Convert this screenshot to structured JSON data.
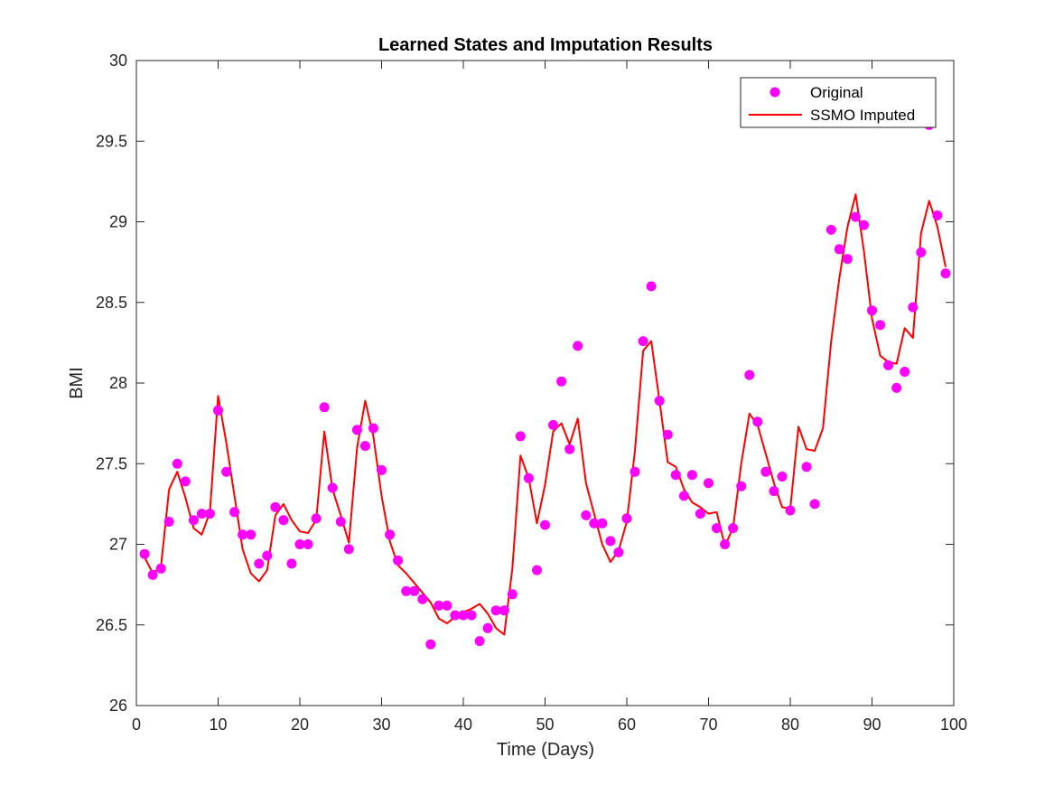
{
  "chart_data": {
    "type": "line",
    "title": "Learned States and Imputation Results",
    "xlabel": "Time (Days)",
    "ylabel": "BMI",
    "xlim": [
      0,
      100
    ],
    "ylim": [
      26,
      30
    ],
    "xticks": [
      0,
      10,
      20,
      30,
      40,
      50,
      60,
      70,
      80,
      90,
      100
    ],
    "yticks": [
      26,
      26.5,
      27,
      27.5,
      28,
      28.5,
      29,
      29.5,
      30
    ],
    "grid": false,
    "legend_position": "top-right",
    "series": [
      {
        "name": "Original",
        "type": "scatter",
        "color": "#ff00ff",
        "points": [
          [
            1,
            26.94
          ],
          [
            2,
            26.81
          ],
          [
            3,
            26.85
          ],
          [
            4,
            27.14
          ],
          [
            5,
            27.5
          ],
          [
            6,
            27.39
          ],
          [
            7,
            27.15
          ],
          [
            8,
            27.19
          ],
          [
            9,
            27.19
          ],
          [
            10,
            27.83
          ],
          [
            11,
            27.45
          ],
          [
            12,
            27.2
          ],
          [
            13,
            27.06
          ],
          [
            14,
            27.06
          ],
          [
            15,
            26.88
          ],
          [
            16,
            26.93
          ],
          [
            17,
            27.23
          ],
          [
            18,
            27.15
          ],
          [
            19,
            26.88
          ],
          [
            20,
            27.0
          ],
          [
            21,
            27.0
          ],
          [
            22,
            27.16
          ],
          [
            23,
            27.85
          ],
          [
            24,
            27.35
          ],
          [
            25,
            27.14
          ],
          [
            26,
            26.97
          ],
          [
            27,
            27.71
          ],
          [
            28,
            27.61
          ],
          [
            29,
            27.72
          ],
          [
            30,
            27.46
          ],
          [
            31,
            27.06
          ],
          [
            32,
            26.9
          ],
          [
            33,
            26.71
          ],
          [
            34,
            26.71
          ],
          [
            35,
            26.66
          ],
          [
            36,
            26.38
          ],
          [
            37,
            26.62
          ],
          [
            38,
            26.62
          ],
          [
            39,
            26.56
          ],
          [
            40,
            26.56
          ],
          [
            41,
            26.56
          ],
          [
            42,
            26.4
          ],
          [
            43,
            26.48
          ],
          [
            44,
            26.59
          ],
          [
            45,
            26.59
          ],
          [
            46,
            26.69
          ],
          [
            47,
            27.67
          ],
          [
            48,
            27.41
          ],
          [
            49,
            26.84
          ],
          [
            50,
            27.12
          ],
          [
            51,
            27.74
          ],
          [
            52,
            28.01
          ],
          [
            53,
            27.59
          ],
          [
            54,
            28.23
          ],
          [
            55,
            27.18
          ],
          [
            56,
            27.13
          ],
          [
            57,
            27.13
          ],
          [
            58,
            27.02
          ],
          [
            59,
            26.95
          ],
          [
            60,
            27.16
          ],
          [
            61,
            27.45
          ],
          [
            62,
            28.26
          ],
          [
            63,
            28.6
          ],
          [
            64,
            27.89
          ],
          [
            65,
            27.68
          ],
          [
            66,
            27.43
          ],
          [
            67,
            27.3
          ],
          [
            68,
            27.43
          ],
          [
            69,
            27.19
          ],
          [
            70,
            27.38
          ],
          [
            71,
            27.1
          ],
          [
            72,
            27.0
          ],
          [
            73,
            27.1
          ],
          [
            74,
            27.36
          ],
          [
            75,
            28.05
          ],
          [
            76,
            27.76
          ],
          [
            77,
            27.45
          ],
          [
            78,
            27.33
          ],
          [
            79,
            27.42
          ],
          [
            80,
            27.21
          ],
          [
            82,
            27.48
          ],
          [
            83,
            27.25
          ],
          [
            85,
            28.95
          ],
          [
            86,
            28.83
          ],
          [
            87,
            28.77
          ],
          [
            88,
            29.03
          ],
          [
            89,
            28.98
          ],
          [
            90,
            28.45
          ],
          [
            91,
            28.36
          ],
          [
            92,
            28.11
          ],
          [
            93,
            27.97
          ],
          [
            94,
            28.07
          ],
          [
            95,
            28.47
          ],
          [
            96,
            28.81
          ],
          [
            97,
            29.6
          ],
          [
            98,
            29.04
          ],
          [
            99,
            28.68
          ]
        ]
      },
      {
        "name": "SSMO Imputed",
        "type": "line",
        "color": "#ff0000",
        "points": [
          [
            1,
            26.92
          ],
          [
            2,
            26.82
          ],
          [
            3,
            26.86
          ],
          [
            4,
            27.34
          ],
          [
            5,
            27.45
          ],
          [
            6,
            27.29
          ],
          [
            7,
            27.1
          ],
          [
            8,
            27.06
          ],
          [
            9,
            27.2
          ],
          [
            10,
            27.92
          ],
          [
            11,
            27.63
          ],
          [
            12,
            27.3
          ],
          [
            13,
            26.97
          ],
          [
            14,
            26.82
          ],
          [
            15,
            26.77
          ],
          [
            16,
            26.84
          ],
          [
            17,
            27.18
          ],
          [
            18,
            27.25
          ],
          [
            19,
            27.15
          ],
          [
            20,
            27.08
          ],
          [
            21,
            27.07
          ],
          [
            22,
            27.15
          ],
          [
            23,
            27.7
          ],
          [
            24,
            27.34
          ],
          [
            25,
            27.18
          ],
          [
            26,
            27.01
          ],
          [
            27,
            27.6
          ],
          [
            28,
            27.89
          ],
          [
            29,
            27.67
          ],
          [
            30,
            27.3
          ],
          [
            31,
            27.02
          ],
          [
            32,
            26.87
          ],
          [
            33,
            26.82
          ],
          [
            34,
            26.76
          ],
          [
            35,
            26.7
          ],
          [
            36,
            26.64
          ],
          [
            37,
            26.54
          ],
          [
            38,
            26.51
          ],
          [
            39,
            26.55
          ],
          [
            40,
            26.58
          ],
          [
            41,
            26.6
          ],
          [
            42,
            26.63
          ],
          [
            43,
            26.57
          ],
          [
            44,
            26.48
          ],
          [
            45,
            26.44
          ],
          [
            46,
            26.85
          ],
          [
            47,
            27.55
          ],
          [
            48,
            27.41
          ],
          [
            49,
            27.13
          ],
          [
            50,
            27.37
          ],
          [
            51,
            27.7
          ],
          [
            52,
            27.75
          ],
          [
            53,
            27.62
          ],
          [
            54,
            27.78
          ],
          [
            55,
            27.38
          ],
          [
            56,
            27.19
          ],
          [
            57,
            27.0
          ],
          [
            58,
            26.89
          ],
          [
            59,
            26.96
          ],
          [
            60,
            27.14
          ],
          [
            61,
            27.58
          ],
          [
            62,
            28.2
          ],
          [
            63,
            28.26
          ],
          [
            64,
            27.89
          ],
          [
            65,
            27.51
          ],
          [
            66,
            27.48
          ],
          [
            67,
            27.34
          ],
          [
            68,
            27.26
          ],
          [
            69,
            27.23
          ],
          [
            70,
            27.19
          ],
          [
            71,
            27.2
          ],
          [
            72,
            26.99
          ],
          [
            73,
            27.1
          ],
          [
            74,
            27.5
          ],
          [
            75,
            27.81
          ],
          [
            76,
            27.74
          ],
          [
            77,
            27.56
          ],
          [
            78,
            27.38
          ],
          [
            79,
            27.23
          ],
          [
            80,
            27.22
          ],
          [
            81,
            27.73
          ],
          [
            82,
            27.59
          ],
          [
            83,
            27.58
          ],
          [
            84,
            27.72
          ],
          [
            85,
            28.26
          ],
          [
            86,
            28.65
          ],
          [
            87,
            28.97
          ],
          [
            88,
            29.17
          ],
          [
            89,
            28.82
          ],
          [
            90,
            28.4
          ],
          [
            91,
            28.17
          ],
          [
            92,
            28.13
          ],
          [
            93,
            28.12
          ],
          [
            94,
            28.34
          ],
          [
            95,
            28.28
          ],
          [
            96,
            28.93
          ],
          [
            97,
            29.13
          ],
          [
            98,
            28.97
          ],
          [
            99,
            28.72
          ]
        ]
      }
    ]
  }
}
